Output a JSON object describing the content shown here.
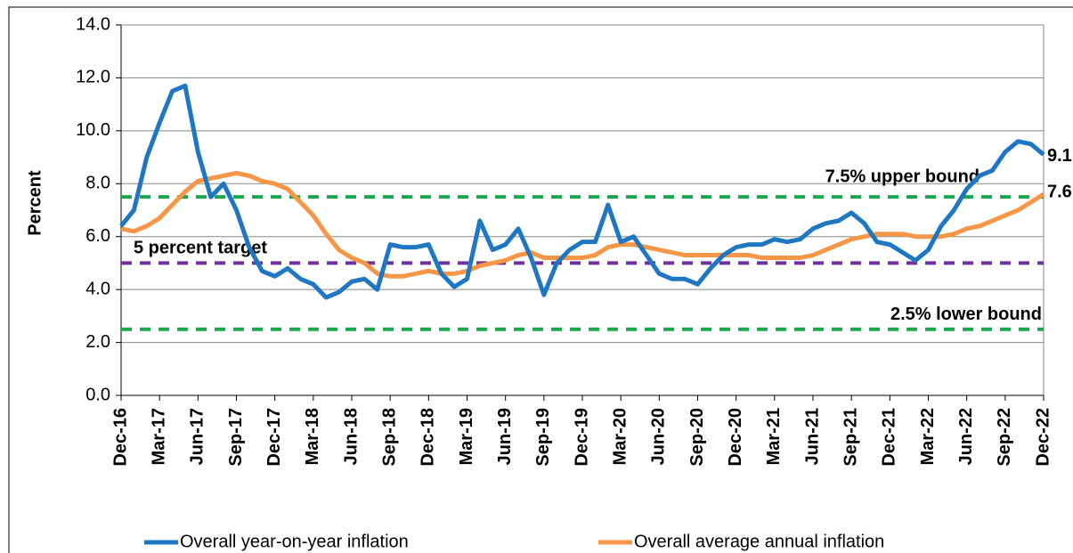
{
  "chart_data": {
    "type": "line",
    "y_label": "Percent",
    "categories": [
      "Dec-16",
      null,
      null,
      "Mar-17",
      null,
      null,
      "Jun-17",
      null,
      null,
      "Sep-17",
      null,
      null,
      "Dec-17",
      null,
      null,
      "Mar-18",
      null,
      null,
      "Jun-18",
      null,
      null,
      "Sep-18",
      null,
      null,
      "Dec-18",
      null,
      null,
      "Mar-19",
      null,
      null,
      "Jun-19",
      null,
      null,
      "Sep-19",
      null,
      null,
      "Dec-19",
      null,
      null,
      "Mar-20",
      null,
      null,
      "Jun-20",
      null,
      null,
      "Sep-20",
      null,
      null,
      "Dec-20",
      null,
      null,
      "Mar-21",
      null,
      null,
      "Jun-21",
      null,
      null,
      "Sep-21",
      null,
      null,
      "Dec-21",
      null,
      null,
      "Mar-22",
      null,
      null,
      "Jun-22",
      null,
      null,
      "Sep-22",
      null,
      null,
      "Dec-22"
    ],
    "series": [
      {
        "name": "Overall year-on-year inflation",
        "color": "#1f77c4",
        "values": [
          6.4,
          7.0,
          9.0,
          10.3,
          11.5,
          11.7,
          9.2,
          7.5,
          8.0,
          7.0,
          5.6,
          4.7,
          4.5,
          4.8,
          4.4,
          4.2,
          3.7,
          3.9,
          4.3,
          4.4,
          4.0,
          5.7,
          5.6,
          5.6,
          5.7,
          4.6,
          4.1,
          4.4,
          6.6,
          5.5,
          5.7,
          6.3,
          5.2,
          3.8,
          5.0,
          5.5,
          5.8,
          5.8,
          7.2,
          5.8,
          6.0,
          5.3,
          4.6,
          4.4,
          4.4,
          4.2,
          4.8,
          5.3,
          5.6,
          5.7,
          5.7,
          5.9,
          5.8,
          5.9,
          6.3,
          6.5,
          6.6,
          6.9,
          6.5,
          5.8,
          5.7,
          5.4,
          5.1,
          5.5,
          6.4,
          7.0,
          7.8,
          8.3,
          8.5,
          9.2,
          9.6,
          9.5,
          9.1
        ]
      },
      {
        "name": "Overall average annual inflation",
        "color": "#f79646",
        "values": [
          6.3,
          6.2,
          6.4,
          6.7,
          7.2,
          7.7,
          8.1,
          8.2,
          8.3,
          8.4,
          8.3,
          8.1,
          8.0,
          7.8,
          7.3,
          6.8,
          6.1,
          5.5,
          5.2,
          5.0,
          4.6,
          4.5,
          4.5,
          4.6,
          4.7,
          4.6,
          4.6,
          4.7,
          4.9,
          5.0,
          5.1,
          5.3,
          5.4,
          5.2,
          5.2,
          5.2,
          5.2,
          5.3,
          5.6,
          5.7,
          5.7,
          5.6,
          5.5,
          5.4,
          5.3,
          5.3,
          5.3,
          5.3,
          5.3,
          5.3,
          5.2,
          5.2,
          5.2,
          5.2,
          5.3,
          5.5,
          5.7,
          5.9,
          6.0,
          6.1,
          6.1,
          6.1,
          6.0,
          6.0,
          6.0,
          6.1,
          6.3,
          6.4,
          6.6,
          6.8,
          7.0,
          7.3,
          7.6
        ]
      }
    ],
    "reference_lines": [
      {
        "value": 7.5,
        "label": "7.5% upper bound",
        "color": "#1aa84f"
      },
      {
        "value": 5,
        "label": "5 percent target",
        "color": "#7030a0"
      },
      {
        "value": 2.5,
        "label": "2.5% lower bound",
        "color": "#1aa84f"
      }
    ],
    "ylim": [
      0,
      14
    ],
    "yticks": [
      {
        "value": 0,
        "label": "0.0"
      },
      {
        "value": 2,
        "label": "2.0"
      },
      {
        "value": 4,
        "label": "4.0"
      },
      {
        "value": 6,
        "label": "6.0"
      },
      {
        "value": 8,
        "label": "8.0"
      },
      {
        "value": 10,
        "label": "10.0"
      },
      {
        "value": 12,
        "label": "12.0"
      },
      {
        "value": 14,
        "label": "14.0"
      }
    ],
    "grid": true
  }
}
